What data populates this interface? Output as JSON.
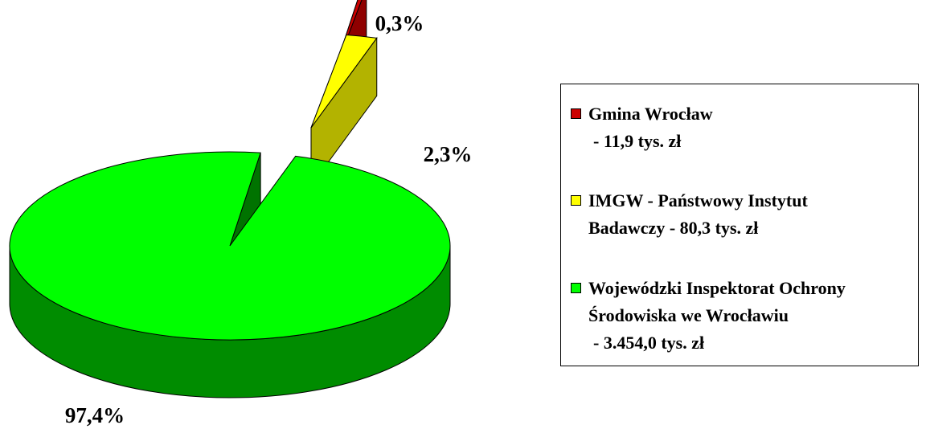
{
  "chart_data": {
    "type": "pie",
    "title": "",
    "three_d": true,
    "exploded": true,
    "slices": [
      {
        "label": "Gmina Wrocław - 11,9 tys. zł",
        "value": 11.9,
        "percent_label": "0,3%",
        "color": "#cc0000",
        "legend_lines": [
          "Gmina Wrocław",
          "- 11,9 tys. zł"
        ]
      },
      {
        "label": "IMGW - Państwowy Instytut Badawczy - 80,3 tys. zł",
        "value": 80.3,
        "percent_label": "2,3%",
        "color": "#ffff00",
        "legend_lines": [
          "IMGW - Państwowy Instytut",
          "Badawczy - 80,3 tys. zł"
        ]
      },
      {
        "label": "Wojewódzki Inspektorat Ochrony Środowiska we Wrocławiu - 3.454,0 tys. zł",
        "value": 3454.0,
        "percent_label": "97,4%",
        "color": "#00ff00",
        "legend_lines": [
          "Wojewódzki Inspektorat Ochrony",
          "Środowiska we Wrocławiu",
          "- 3.454,0 tys. zł"
        ]
      }
    ],
    "legend_placement": "right"
  }
}
